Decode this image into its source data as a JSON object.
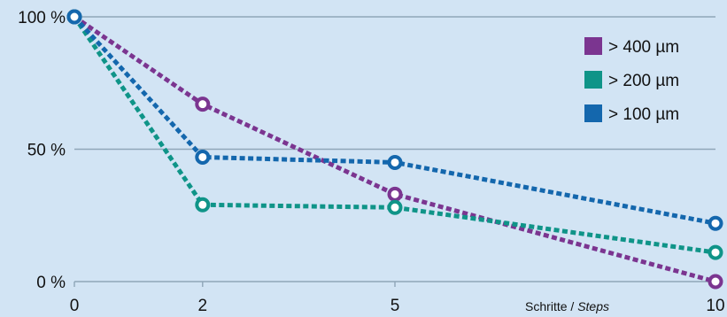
{
  "chart_data": {
    "type": "line",
    "title": "",
    "x": [
      0,
      2,
      5,
      10
    ],
    "xticks": [
      "0",
      "2",
      "5",
      "10"
    ],
    "xlim": [
      0,
      10
    ],
    "xlabel": {
      "main": "Schritte / ",
      "italic": "Steps"
    },
    "ylim": [
      0,
      100
    ],
    "yticks": [
      "100 %",
      "50 %",
      "0 %"
    ],
    "ytick_values": [
      100,
      50,
      0
    ],
    "grid": true,
    "legend_position": "top-right",
    "series": [
      {
        "name": "> 400 µm",
        "color": "#7b3590",
        "values": [
          100,
          67,
          33,
          0
        ]
      },
      {
        "name": "> 200 µm",
        "color": "#0f9488",
        "values": [
          100,
          29,
          28,
          11
        ]
      },
      {
        "name": "> 100 µm",
        "color": "#1467ad",
        "values": [
          100,
          47,
          45,
          22
        ]
      }
    ]
  }
}
